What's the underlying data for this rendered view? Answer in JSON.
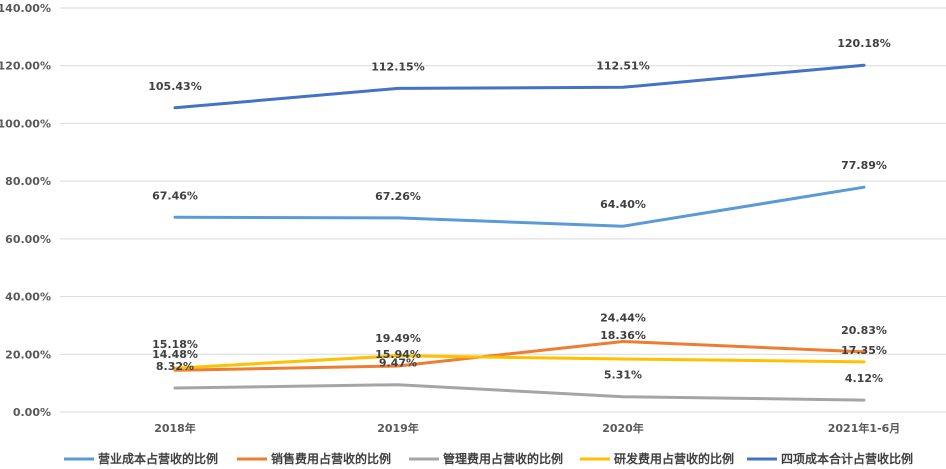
{
  "chart_data": {
    "type": "line",
    "title": "",
    "xlabel": "",
    "ylabel": "",
    "categories": [
      "2018年",
      "2019年",
      "2020年",
      "2021年1-6月"
    ],
    "ylim": [
      0,
      140
    ],
    "ytick_step": 20,
    "ytick_labels": [
      "0.00%",
      "20.00%",
      "40.00%",
      "60.00%",
      "80.00%",
      "100.00%",
      "120.00%",
      "140.00%"
    ],
    "legend_position": "bottom",
    "series": [
      {
        "name": "营业成本占营收的比例",
        "color": "#5B9BD5",
        "values": [
          67.46,
          67.26,
          64.4,
          77.89
        ],
        "labels": [
          "67.46%",
          "67.26%",
          "64.40%",
          "77.89%"
        ]
      },
      {
        "name": "销售费用占营收的比例",
        "color": "#ED7D31",
        "values": [
          14.48,
          15.94,
          24.44,
          20.83
        ],
        "labels": [
          "14.48%",
          "15.94%",
          "24.44%",
          "20.83%"
        ]
      },
      {
        "name": "管理费用占营收的比例",
        "color": "#A5A5A5",
        "values": [
          8.32,
          9.47,
          5.31,
          4.12
        ],
        "labels": [
          "8.32%",
          "9.47%",
          "5.31%",
          "4.12%"
        ]
      },
      {
        "name": "研发费用占营收的比例",
        "color": "#FFC000",
        "values": [
          15.18,
          19.49,
          18.36,
          17.35
        ],
        "labels": [
          "15.18%",
          "19.49%",
          "18.36%",
          "17.35%"
        ]
      },
      {
        "name": "四项成本合计占营收比例",
        "color": "#4472C4",
        "values": [
          105.43,
          112.15,
          112.51,
          120.18
        ],
        "labels": [
          "105.43%",
          "112.15%",
          "112.51%",
          "120.18%"
        ]
      }
    ]
  }
}
